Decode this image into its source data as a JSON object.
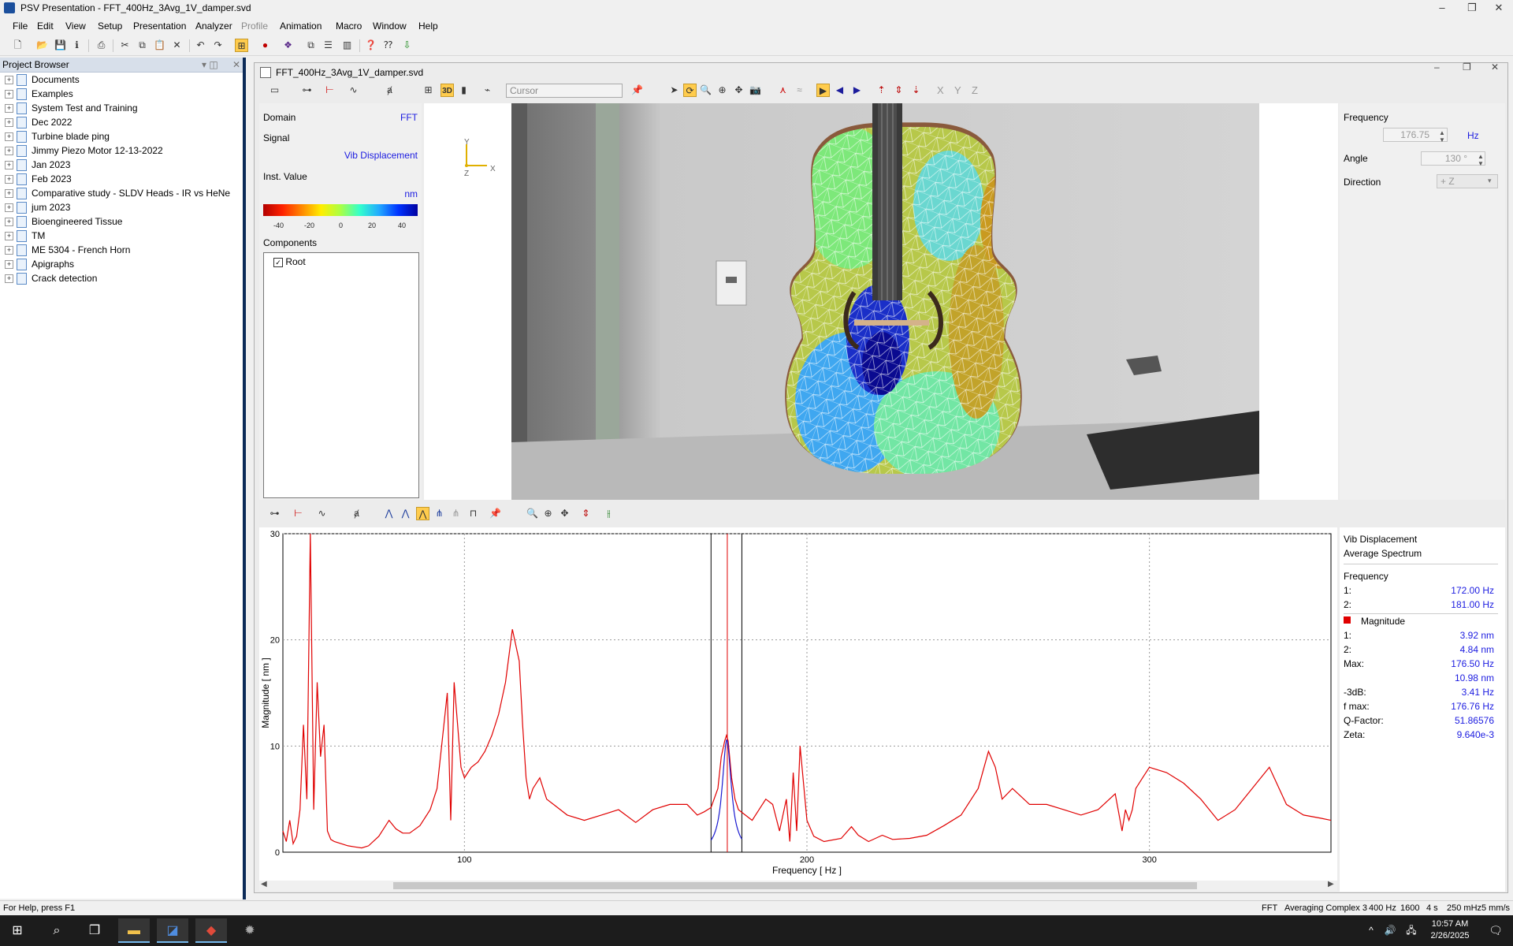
{
  "app": {
    "title": "PSV Presentation - FFT_400Hz_3Avg_1V_damper.svd"
  },
  "window_controls": {
    "minimize": "–",
    "restore": "❐",
    "close": "✕"
  },
  "menu": [
    "File",
    "Edit",
    "View",
    "Setup",
    "Presentation",
    "Analyzer",
    "Profile",
    "Animation",
    "Macro",
    "Window",
    "Help"
  ],
  "project_browser": {
    "title": "Project Browser",
    "items": [
      "Documents",
      "Examples",
      "System Test and Training",
      "Dec 2022",
      "Turbine blade ping",
      "Jimmy Piezo Motor 12-13-2022",
      "Jan 2023",
      "Feb 2023",
      "Comparative study - SLDV Heads - IR vs HeNe",
      "jum 2023",
      "Bioengineered Tissue",
      "TM",
      "ME 5304 - French Horn",
      "Apigraphs",
      "Crack detection"
    ]
  },
  "document": {
    "title": "FFT_400Hz_3Avg_1V_damper.svd",
    "cursor_placeholder": "Cursor",
    "mode_3d": "3D",
    "axes_buttons": [
      "X",
      "Y",
      "Z"
    ],
    "triad": {
      "y": "Y",
      "z": "Z",
      "x": "X"
    }
  },
  "parameters": {
    "domain_label": "Domain",
    "domain_value": "FFT",
    "signal_label": "Signal",
    "signal_value": "Vib Displacement",
    "inst_label": "Inst. Value",
    "unit": "nm",
    "colorbar_ticks": [
      "-40",
      "-20",
      "0",
      "20",
      "40"
    ],
    "components_label": "Components",
    "root": "Root"
  },
  "frequency_panel": {
    "frequency_label": "Frequency",
    "frequency_value": "176.75",
    "frequency_unit": "Hz",
    "angle_label": "Angle",
    "angle_value": "130 °",
    "direction_label": "Direction",
    "direction_value": "+ Z"
  },
  "spectrum_info": {
    "signal": "Vib Displacement",
    "type": "Average Spectrum",
    "frequency_label": "Frequency",
    "f1_label": "1:",
    "f1": "172.00 Hz",
    "f2_label": "2:",
    "f2": "181.00 Hz",
    "magnitude_label": "Magnitude",
    "m1_label": "1:",
    "m1": "3.92 nm",
    "m2_label": "2:",
    "m2": "4.84 nm",
    "max_label": "Max:",
    "max_freq": "176.50 Hz",
    "max_val": "10.98 nm",
    "db3_label": "-3dB:",
    "db3": "3.41 Hz",
    "fmax_label": "f max:",
    "fmax": "176.76 Hz",
    "q_label": "Q-Factor:",
    "q": "51.86576",
    "zeta_label": "Zeta:",
    "zeta": "9.640e-3",
    "series_color": "#e00000",
    "fit_color": "#1a1ad0"
  },
  "chart_data": {
    "type": "line",
    "xlabel": "Frequency [ Hz ]",
    "ylabel": "Magnitude [ nm ]",
    "xlim": [
      47,
      353
    ],
    "ylim": [
      0,
      30
    ],
    "x_ticks": [
      100,
      200,
      300
    ],
    "y_ticks": [
      0,
      10,
      20,
      30
    ],
    "grid": true,
    "cursors": [
      172.0,
      181.0
    ],
    "marker": 176.75,
    "series": [
      {
        "color": "#e00000",
        "x": [
          47,
          48,
          49,
          50,
          51,
          52,
          53,
          54,
          55,
          56,
          57,
          58,
          59,
          60,
          61,
          62,
          64,
          66,
          68,
          70,
          72,
          75,
          78,
          80,
          82,
          84,
          87,
          90,
          92,
          94,
          95,
          96,
          97,
          98,
          99,
          100,
          101,
          102,
          104,
          106,
          108,
          110,
          112,
          114,
          116,
          117,
          118,
          119,
          120,
          122,
          124,
          126,
          128,
          130,
          135,
          140,
          145,
          150,
          155,
          160,
          165,
          168,
          170,
          172,
          174,
          175,
          176,
          176.5,
          177,
          178,
          179,
          180,
          182,
          184,
          186,
          188,
          190,
          192,
          194,
          195,
          196,
          197,
          198,
          200,
          202,
          205,
          210,
          213,
          215,
          218,
          220,
          222,
          225,
          230,
          235,
          240,
          245,
          250,
          253,
          255,
          257,
          260,
          265,
          270,
          275,
          280,
          285,
          290,
          292,
          293,
          294,
          295,
          296,
          298,
          300,
          305,
          310,
          315,
          320,
          325,
          330,
          335,
          340,
          345,
          350,
          353
        ],
        "values": [
          2,
          1,
          3,
          0.8,
          1.5,
          4,
          12,
          5,
          30,
          4,
          16,
          9,
          12,
          2,
          1.2,
          1.0,
          0.8,
          0.6,
          0.5,
          0.4,
          0.6,
          1.5,
          3,
          2.2,
          1.8,
          1.8,
          2.5,
          4,
          6,
          12,
          15,
          3,
          16,
          12,
          8,
          7,
          7.5,
          8,
          8.5,
          9.5,
          11,
          13,
          16,
          21,
          18,
          12,
          7,
          5,
          6,
          7,
          5,
          4.5,
          4,
          3.5,
          3,
          3.5,
          4,
          2.8,
          4,
          4.5,
          4.5,
          3.5,
          3.8,
          4.2,
          6,
          9,
          10.5,
          11,
          10.5,
          7,
          5,
          4,
          3.5,
          3,
          4,
          5,
          4.5,
          2,
          5,
          1,
          7.5,
          2,
          10,
          3,
          1.5,
          1.0,
          1.3,
          2.4,
          1.6,
          1.0,
          1.3,
          1.6,
          1.2,
          1.3,
          1.6,
          2.5,
          3.5,
          6,
          9.5,
          8,
          5,
          6,
          4.5,
          4.5,
          4,
          3.5,
          4,
          5.5,
          2,
          4,
          3,
          4,
          6,
          7,
          8,
          7.5,
          6.5,
          5,
          3,
          4,
          6,
          8,
          4.5,
          3.5,
          3.2,
          3.0
        ]
      }
    ]
  },
  "status": {
    "help": "For Help, press F1",
    "fields": [
      "FFT",
      "Averaging Complex 3",
      "400 Hz",
      "1600",
      "4 s",
      "250 mHz",
      "5 mm/s"
    ]
  },
  "taskbar": {
    "time": "10:57 AM",
    "date": "2/26/2025"
  }
}
